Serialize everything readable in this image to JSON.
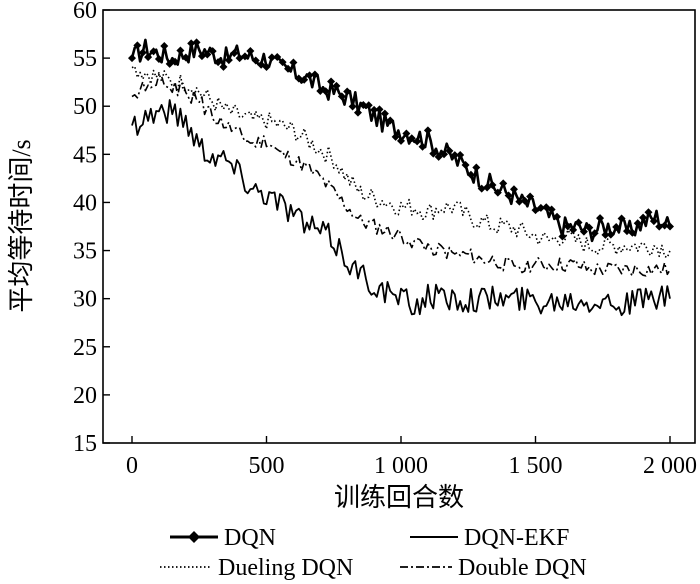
{
  "chart_data": {
    "type": "line",
    "xlabel": "训练回合数",
    "ylabel": "平均等待时间/s",
    "xlim": [
      0,
      2000
    ],
    "ylim": [
      15,
      60
    ],
    "x_ticks": [
      0,
      500,
      1000,
      1500,
      2000
    ],
    "x_tick_labels": [
      "0",
      "500",
      "1 000",
      "1 500",
      "2 000"
    ],
    "y_ticks": [
      15,
      20,
      25,
      30,
      35,
      40,
      45,
      50,
      55,
      60
    ],
    "y_tick_labels": [
      "15",
      "20",
      "25",
      "30",
      "35",
      "40",
      "45",
      "50",
      "55",
      "60"
    ],
    "grid": false,
    "legend_position": "bottom",
    "x": [
      0,
      50,
      100,
      150,
      200,
      250,
      300,
      350,
      400,
      450,
      500,
      550,
      600,
      650,
      700,
      750,
      800,
      850,
      900,
      950,
      1000,
      1050,
      1100,
      1150,
      1200,
      1250,
      1300,
      1350,
      1400,
      1450,
      1500,
      1550,
      1600,
      1650,
      1700,
      1750,
      1800,
      1850,
      1900,
      1950,
      2000
    ],
    "series": [
      {
        "name": "DQN",
        "style": "solid-marker",
        "values": [
          55.0,
          56.0,
          55.5,
          55.0,
          55.5,
          56.0,
          55.5,
          55.0,
          55.5,
          55.0,
          55.0,
          54.0,
          53.5,
          53.0,
          52.0,
          51.5,
          51.0,
          50.0,
          49.0,
          48.0,
          47.5,
          47.0,
          46.5,
          45.5,
          44.5,
          43.5,
          42.5,
          41.5,
          41.0,
          40.0,
          39.5,
          38.5,
          37.5,
          37.5,
          37.0,
          37.5,
          37.5,
          37.0,
          38.0,
          38.5,
          37.5
        ]
      },
      {
        "name": "DQN-EKF",
        "style": "solid",
        "values": [
          48.0,
          49.0,
          49.5,
          49.5,
          48.5,
          46.0,
          45.0,
          44.5,
          43.0,
          41.5,
          41.0,
          40.0,
          39.0,
          37.5,
          37.0,
          36.0,
          34.0,
          32.5,
          31.5,
          30.5,
          30.0,
          29.0,
          30.5,
          30.0,
          30.0,
          30.0,
          30.0,
          30.0,
          30.0,
          30.0,
          29.8,
          29.8,
          30.0,
          30.0,
          30.0,
          30.0,
          29.5,
          29.5,
          30.0,
          30.0,
          30.0
        ]
      },
      {
        "name": "Dueling DQN",
        "style": "dotted",
        "values": [
          54.0,
          53.5,
          53.0,
          52.5,
          52.5,
          51.5,
          50.5,
          49.5,
          49.0,
          48.5,
          48.5,
          48.0,
          47.5,
          46.5,
          45.5,
          44.5,
          42.5,
          41.0,
          40.5,
          40.0,
          39.5,
          39.5,
          39.0,
          39.5,
          39.5,
          38.5,
          38.0,
          37.5,
          37.5,
          37.0,
          36.5,
          36.0,
          36.5,
          36.0,
          35.5,
          35.5,
          35.5,
          35.5,
          35.5,
          35.5,
          35.0
        ]
      },
      {
        "name": "Double DQN",
        "style": "dashdot",
        "values": [
          51.0,
          52.0,
          52.5,
          52.0,
          51.5,
          50.5,
          49.0,
          48.0,
          47.0,
          46.0,
          46.5,
          45.0,
          44.5,
          43.5,
          42.5,
          41.0,
          39.5,
          38.0,
          37.5,
          37.0,
          36.5,
          36.0,
          35.5,
          35.0,
          34.5,
          34.5,
          34.0,
          34.0,
          33.5,
          33.5,
          33.5,
          33.5,
          33.5,
          33.5,
          33.0,
          33.0,
          33.0,
          33.0,
          33.0,
          33.0,
          33.0
        ]
      }
    ]
  }
}
